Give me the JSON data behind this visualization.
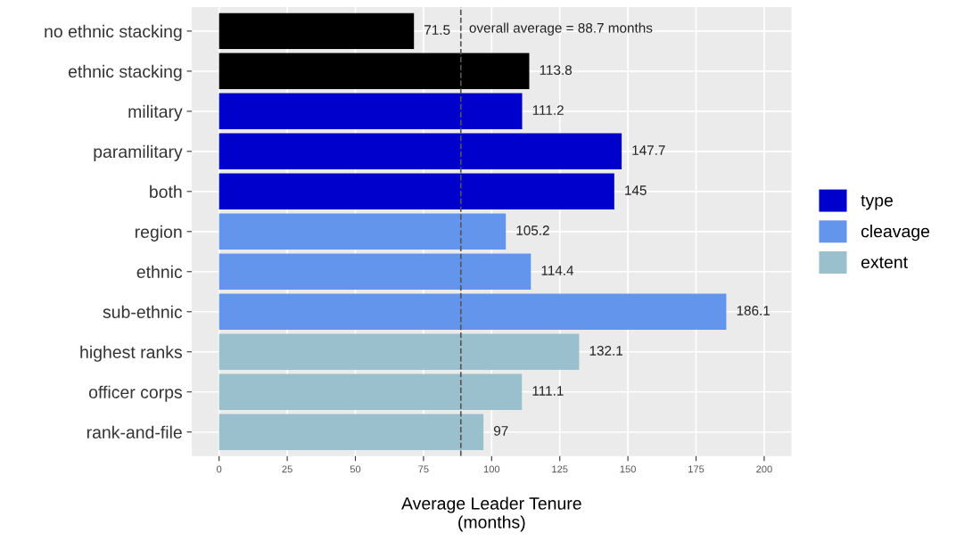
{
  "chart_data": {
    "type": "bar",
    "orientation": "horizontal",
    "categories": [
      "no ethnic stacking",
      "ethnic stacking",
      "military",
      "paramilitary",
      "both",
      "region",
      "ethnic",
      "sub-ethnic",
      "highest ranks",
      "officer corps",
      "rank-and-file"
    ],
    "series": [
      {
        "color": "#000000",
        "values": [
          71.5,
          113.8,
          null,
          null,
          null,
          null,
          null,
          null,
          null,
          null,
          null
        ]
      },
      {
        "name": "type",
        "color": "#0000cd",
        "values": [
          null,
          null,
          111.2,
          147.7,
          145,
          null,
          null,
          null,
          null,
          null,
          null
        ]
      },
      {
        "name": "cleavage",
        "color": "#6495ed",
        "values": [
          null,
          null,
          null,
          null,
          null,
          105.2,
          114.4,
          186.1,
          null,
          null,
          null
        ]
      },
      {
        "name": "extent",
        "color": "#9ac0cd",
        "values": [
          null,
          null,
          null,
          null,
          null,
          null,
          null,
          null,
          132.1,
          111.1,
          97
        ]
      }
    ],
    "xlim": [
      -10,
      210
    ],
    "xticks": [
      0,
      25,
      50,
      75,
      100,
      125,
      150,
      175,
      200
    ],
    "xlabel": "Average Leader Tenure\n(months)",
    "ref_lines": [
      {
        "axis": "x",
        "value": 88.7,
        "label": "overall average = 88.7 months",
        "color": "#555555",
        "line_style": "dashed"
      }
    ],
    "data_labels": true,
    "grid": true,
    "legend": "right"
  }
}
